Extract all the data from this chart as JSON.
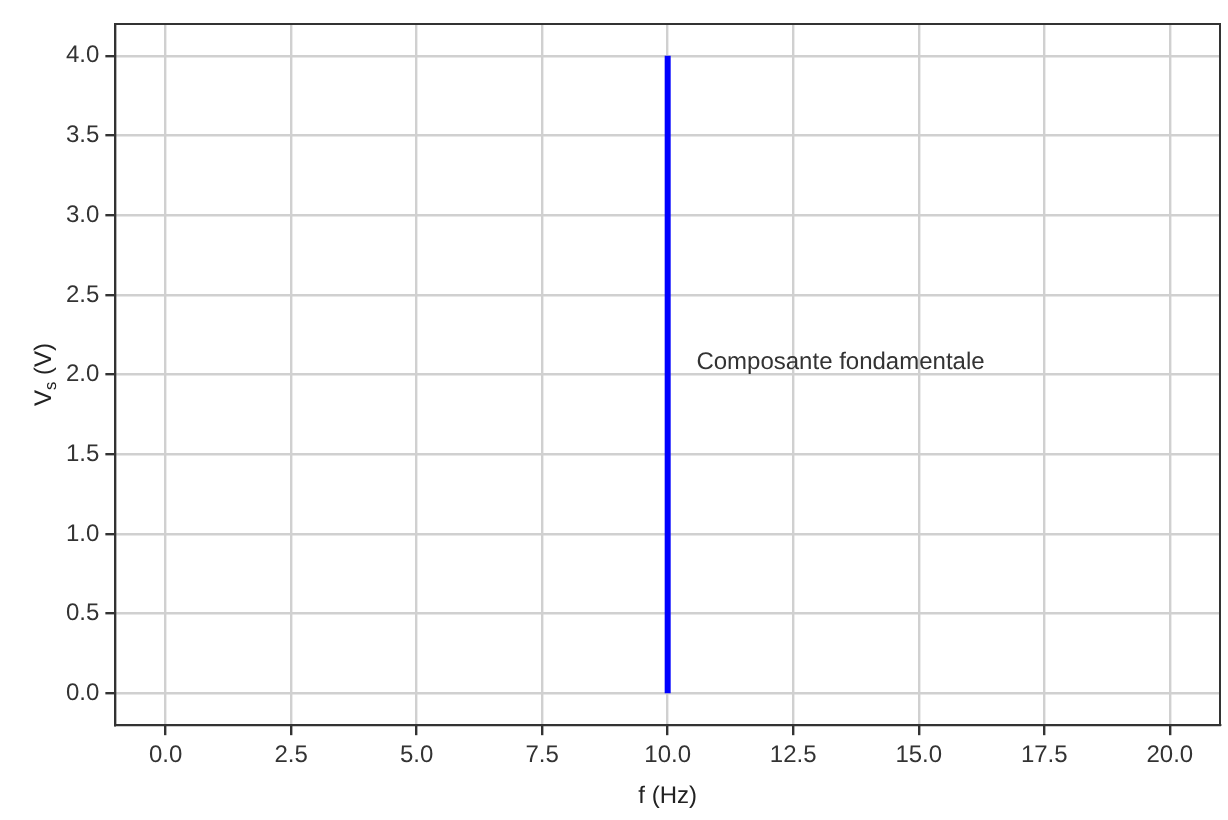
{
  "chart_data": {
    "type": "line",
    "series": [
      {
        "color": "#0000ff",
        "x": [
          10,
          10
        ],
        "values": [
          0,
          4
        ]
      }
    ],
    "xlabel": "f (Hz)",
    "ylabel": "V$_{s}$ (V)",
    "xlim": [
      -1,
      21
    ],
    "xticks": [
      {
        "value": 0,
        "label": "0.0"
      },
      {
        "value": 2.5,
        "label": "2.5"
      },
      {
        "value": 5,
        "label": "5.0"
      },
      {
        "value": 7.5,
        "label": "7.5"
      },
      {
        "value": 10,
        "label": "10.0"
      },
      {
        "value": 12.5,
        "label": "12.5"
      },
      {
        "value": 15,
        "label": "15.0"
      },
      {
        "value": 17.5,
        "label": "17.5"
      },
      {
        "value": 20,
        "label": "20.0"
      }
    ],
    "ylim": [
      -0.2,
      4.2
    ],
    "yticks": [
      {
        "value": 0,
        "label": "0.0"
      },
      {
        "value": 0.5,
        "label": "0.5"
      },
      {
        "value": 1,
        "label": "1.0"
      },
      {
        "value": 1.5,
        "label": "1.5"
      },
      {
        "value": 2,
        "label": "2.0"
      },
      {
        "value": 2.5,
        "label": "2.5"
      },
      {
        "value": 3,
        "label": "3.0"
      },
      {
        "value": 3.5,
        "label": "3.5"
      },
      {
        "value": 4,
        "label": "4.0"
      }
    ],
    "annotations": [
      "Composante fondamentale"
    ],
    "grid": true,
    "marker": "none",
    "line_style": "solid"
  }
}
